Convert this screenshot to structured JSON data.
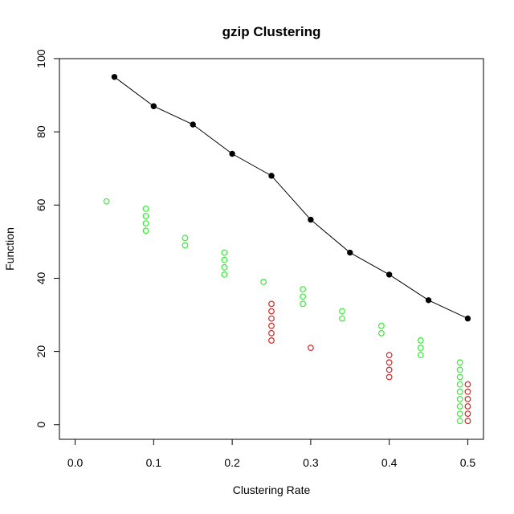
{
  "chart_data": {
    "type": "scatter",
    "title": "gzip Clustering",
    "xlabel": "Clustering Rate",
    "ylabel": "Function",
    "xlim": [
      -0.02,
      0.52
    ],
    "ylim": [
      -4,
      100
    ],
    "x_ticks": [
      0.0,
      0.1,
      0.2,
      0.3,
      0.4,
      0.5
    ],
    "x_tick_labels": [
      "0.0",
      "0.1",
      "0.2",
      "0.3",
      "0.4",
      "0.5"
    ],
    "y_ticks": [
      0,
      20,
      40,
      60,
      80,
      100
    ],
    "y_tick_labels": [
      "0",
      "20",
      "40",
      "60",
      "80",
      "100"
    ],
    "grid": false,
    "colors": {
      "line": "#000000",
      "green": "#33ee33",
      "red": "#dd2222"
    },
    "series": [
      {
        "style": "line-points",
        "color": "#000000",
        "points": [
          [
            0.05,
            95
          ],
          [
            0.1,
            87
          ],
          [
            0.15,
            82
          ],
          [
            0.2,
            74
          ],
          [
            0.25,
            68
          ],
          [
            0.3,
            56
          ],
          [
            0.35,
            47
          ],
          [
            0.4,
            41
          ],
          [
            0.45,
            34
          ],
          [
            0.5,
            29
          ]
        ]
      },
      {
        "style": "open-circles",
        "color": "#33ee33",
        "points": [
          [
            0.04,
            61
          ],
          [
            0.09,
            59
          ],
          [
            0.09,
            57
          ],
          [
            0.09,
            55
          ],
          [
            0.09,
            53
          ],
          [
            0.14,
            51
          ],
          [
            0.14,
            49
          ],
          [
            0.19,
            47
          ],
          [
            0.19,
            45
          ],
          [
            0.19,
            43
          ],
          [
            0.19,
            41
          ],
          [
            0.24,
            39
          ],
          [
            0.29,
            37
          ],
          [
            0.29,
            35
          ],
          [
            0.29,
            33
          ],
          [
            0.34,
            31
          ],
          [
            0.34,
            29
          ],
          [
            0.39,
            27
          ],
          [
            0.39,
            25
          ],
          [
            0.44,
            23
          ],
          [
            0.44,
            21
          ],
          [
            0.44,
            19
          ],
          [
            0.49,
            17
          ],
          [
            0.49,
            15
          ],
          [
            0.49,
            13
          ],
          [
            0.49,
            11
          ],
          [
            0.49,
            9
          ],
          [
            0.49,
            7
          ],
          [
            0.49,
            5
          ],
          [
            0.49,
            3
          ],
          [
            0.49,
            1
          ]
        ]
      },
      {
        "style": "open-circles",
        "color": "#dd2222",
        "points": [
          [
            0.25,
            33
          ],
          [
            0.25,
            31
          ],
          [
            0.25,
            29
          ],
          [
            0.25,
            27
          ],
          [
            0.25,
            25
          ],
          [
            0.25,
            23
          ],
          [
            0.3,
            21
          ],
          [
            0.4,
            19
          ],
          [
            0.4,
            17
          ],
          [
            0.4,
            15
          ],
          [
            0.4,
            13
          ],
          [
            0.5,
            11
          ],
          [
            0.5,
            9
          ],
          [
            0.5,
            7
          ],
          [
            0.5,
            5
          ],
          [
            0.5,
            3
          ],
          [
            0.5,
            1
          ]
        ]
      }
    ]
  }
}
